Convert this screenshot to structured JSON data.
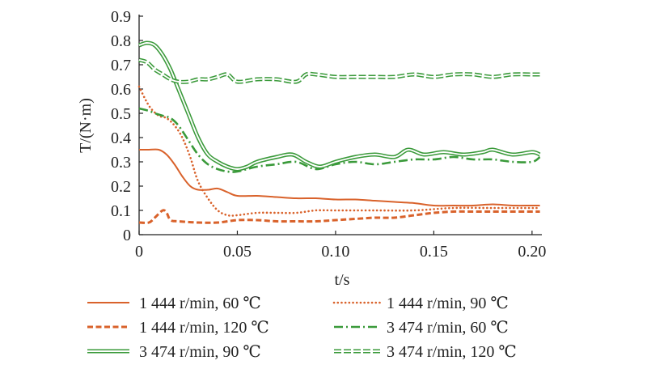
{
  "chart_data": {
    "type": "line",
    "xlabel": "t/s",
    "ylabel": "T/(N·m)",
    "xlim": [
      0,
      0.205
    ],
    "ylim": [
      0,
      0.9
    ],
    "xticks": [
      0,
      0.05,
      0.1,
      0.15,
      0.2
    ],
    "xtick_labels": [
      "0",
      "0.05",
      "0.10",
      "0.15",
      "0.20"
    ],
    "yticks": [
      0,
      0.1,
      0.2,
      0.3,
      0.4,
      0.5,
      0.6,
      0.7,
      0.8,
      0.9
    ],
    "ytick_labels": [
      "0",
      "0.1",
      "0.2",
      "0.3",
      "0.4",
      "0.5",
      "0.6",
      "0.7",
      "0.8",
      "0.9"
    ],
    "grid": false,
    "legend_position": "bottom",
    "series": [
      {
        "name": "1 444 r/min, 60 ℃",
        "color": "#d9622b",
        "style": "solid",
        "x": [
          0,
          0.005,
          0.01,
          0.014,
          0.018,
          0.022,
          0.026,
          0.03,
          0.035,
          0.04,
          0.045,
          0.05,
          0.06,
          0.07,
          0.08,
          0.09,
          0.1,
          0.11,
          0.12,
          0.13,
          0.14,
          0.15,
          0.16,
          0.17,
          0.18,
          0.19,
          0.2,
          0.204
        ],
        "y": [
          0.35,
          0.35,
          0.35,
          0.33,
          0.29,
          0.24,
          0.2,
          0.185,
          0.185,
          0.19,
          0.175,
          0.16,
          0.16,
          0.155,
          0.15,
          0.15,
          0.145,
          0.145,
          0.14,
          0.135,
          0.13,
          0.12,
          0.12,
          0.12,
          0.125,
          0.12,
          0.12,
          0.12
        ]
      },
      {
        "name": "1 444 r/min, 90 ℃",
        "color": "#d9622b",
        "style": "dotted",
        "x": [
          0,
          0.003,
          0.006,
          0.01,
          0.014,
          0.018,
          0.022,
          0.026,
          0.03,
          0.035,
          0.04,
          0.045,
          0.05,
          0.06,
          0.07,
          0.08,
          0.09,
          0.1,
          0.12,
          0.14,
          0.16,
          0.18,
          0.2,
          0.204
        ],
        "y": [
          0.61,
          0.56,
          0.52,
          0.49,
          0.48,
          0.45,
          0.4,
          0.32,
          0.22,
          0.15,
          0.1,
          0.08,
          0.08,
          0.09,
          0.09,
          0.09,
          0.1,
          0.1,
          0.1,
          0.1,
          0.11,
          0.11,
          0.11,
          0.11
        ]
      },
      {
        "name": "1 444 r/min, 120 ℃",
        "color": "#d9622b",
        "style": "dashed",
        "x": [
          0,
          0.005,
          0.008,
          0.012,
          0.014,
          0.016,
          0.02,
          0.03,
          0.04,
          0.05,
          0.06,
          0.07,
          0.08,
          0.09,
          0.1,
          0.11,
          0.12,
          0.13,
          0.14,
          0.15,
          0.16,
          0.17,
          0.18,
          0.19,
          0.2,
          0.204
        ],
        "y": [
          0.05,
          0.05,
          0.07,
          0.1,
          0.09,
          0.06,
          0.055,
          0.05,
          0.05,
          0.06,
          0.06,
          0.055,
          0.055,
          0.055,
          0.06,
          0.065,
          0.07,
          0.07,
          0.08,
          0.09,
          0.095,
          0.095,
          0.095,
          0.095,
          0.095,
          0.095
        ]
      },
      {
        "name": "3 474 r/min, 60 ℃",
        "color": "#3a9a3a",
        "style": "dashdot",
        "x": [
          0,
          0.005,
          0.008,
          0.012,
          0.016,
          0.02,
          0.025,
          0.03,
          0.035,
          0.04,
          0.045,
          0.05,
          0.06,
          0.07,
          0.08,
          0.09,
          0.1,
          0.11,
          0.12,
          0.13,
          0.14,
          0.15,
          0.16,
          0.17,
          0.18,
          0.19,
          0.2,
          0.204
        ],
        "y": [
          0.52,
          0.51,
          0.5,
          0.49,
          0.48,
          0.45,
          0.39,
          0.33,
          0.29,
          0.27,
          0.26,
          0.26,
          0.28,
          0.29,
          0.3,
          0.27,
          0.29,
          0.3,
          0.29,
          0.3,
          0.31,
          0.31,
          0.32,
          0.31,
          0.31,
          0.3,
          0.3,
          0.32
        ]
      },
      {
        "name": "3 474 r/min, 90 ℃",
        "color": "#3a9a3a",
        "style": "double",
        "x": [
          0,
          0.004,
          0.008,
          0.012,
          0.016,
          0.02,
          0.025,
          0.03,
          0.035,
          0.04,
          0.045,
          0.05,
          0.055,
          0.06,
          0.07,
          0.078,
          0.085,
          0.092,
          0.1,
          0.11,
          0.12,
          0.13,
          0.137,
          0.145,
          0.155,
          0.165,
          0.175,
          0.18,
          0.19,
          0.2,
          0.204
        ],
        "y": [
          0.78,
          0.79,
          0.78,
          0.74,
          0.68,
          0.6,
          0.5,
          0.4,
          0.33,
          0.3,
          0.28,
          0.27,
          0.28,
          0.3,
          0.32,
          0.33,
          0.3,
          0.28,
          0.3,
          0.32,
          0.33,
          0.32,
          0.35,
          0.33,
          0.34,
          0.33,
          0.34,
          0.35,
          0.33,
          0.34,
          0.33
        ]
      },
      {
        "name": "3 474 r/min, 120 ℃",
        "color": "#3a9a3a",
        "style": "double-dashed",
        "x": [
          0,
          0.004,
          0.008,
          0.012,
          0.016,
          0.02,
          0.025,
          0.03,
          0.035,
          0.04,
          0.045,
          0.05,
          0.06,
          0.07,
          0.08,
          0.085,
          0.09,
          0.1,
          0.11,
          0.12,
          0.13,
          0.14,
          0.15,
          0.16,
          0.17,
          0.18,
          0.19,
          0.2,
          0.204
        ],
        "y": [
          0.72,
          0.71,
          0.68,
          0.66,
          0.64,
          0.63,
          0.63,
          0.64,
          0.64,
          0.65,
          0.66,
          0.63,
          0.64,
          0.64,
          0.63,
          0.66,
          0.66,
          0.65,
          0.65,
          0.65,
          0.65,
          0.66,
          0.65,
          0.66,
          0.66,
          0.65,
          0.66,
          0.66,
          0.66
        ]
      }
    ]
  }
}
